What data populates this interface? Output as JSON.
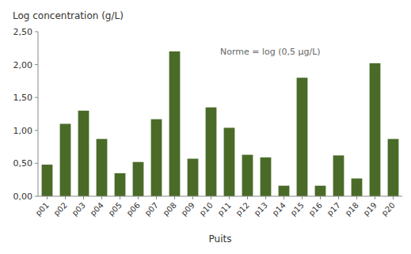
{
  "chart_data": {
    "type": "bar",
    "ylabel": "Log concentration (g/L)",
    "xlabel": "Puits",
    "annotation": "Norme = log (0,5 µg/L)",
    "categories": [
      "p01",
      "p02",
      "p03",
      "p04",
      "p05",
      "p06",
      "p07",
      "p08",
      "p09",
      "p10",
      "p11",
      "p12",
      "p13",
      "p14",
      "p15",
      "p16",
      "p17",
      "p18",
      "p19",
      "p20"
    ],
    "values": [
      0.48,
      1.1,
      1.3,
      0.87,
      0.35,
      0.52,
      1.17,
      2.2,
      0.57,
      1.35,
      1.04,
      0.63,
      0.59,
      0.16,
      1.8,
      0.16,
      0.62,
      0.27,
      2.02,
      0.87
    ],
    "color": "#4a6b28",
    "ylim": [
      0.0,
      2.5
    ],
    "yticks": [
      {
        "value": 0.0,
        "label": "0,00"
      },
      {
        "value": 0.5,
        "label": "0,50"
      },
      {
        "value": 1.0,
        "label": "1,00"
      },
      {
        "value": 1.5,
        "label": "1,50"
      },
      {
        "value": 2.0,
        "label": "2,00"
      },
      {
        "value": 2.5,
        "label": "2,50"
      }
    ],
    "grid": false
  }
}
